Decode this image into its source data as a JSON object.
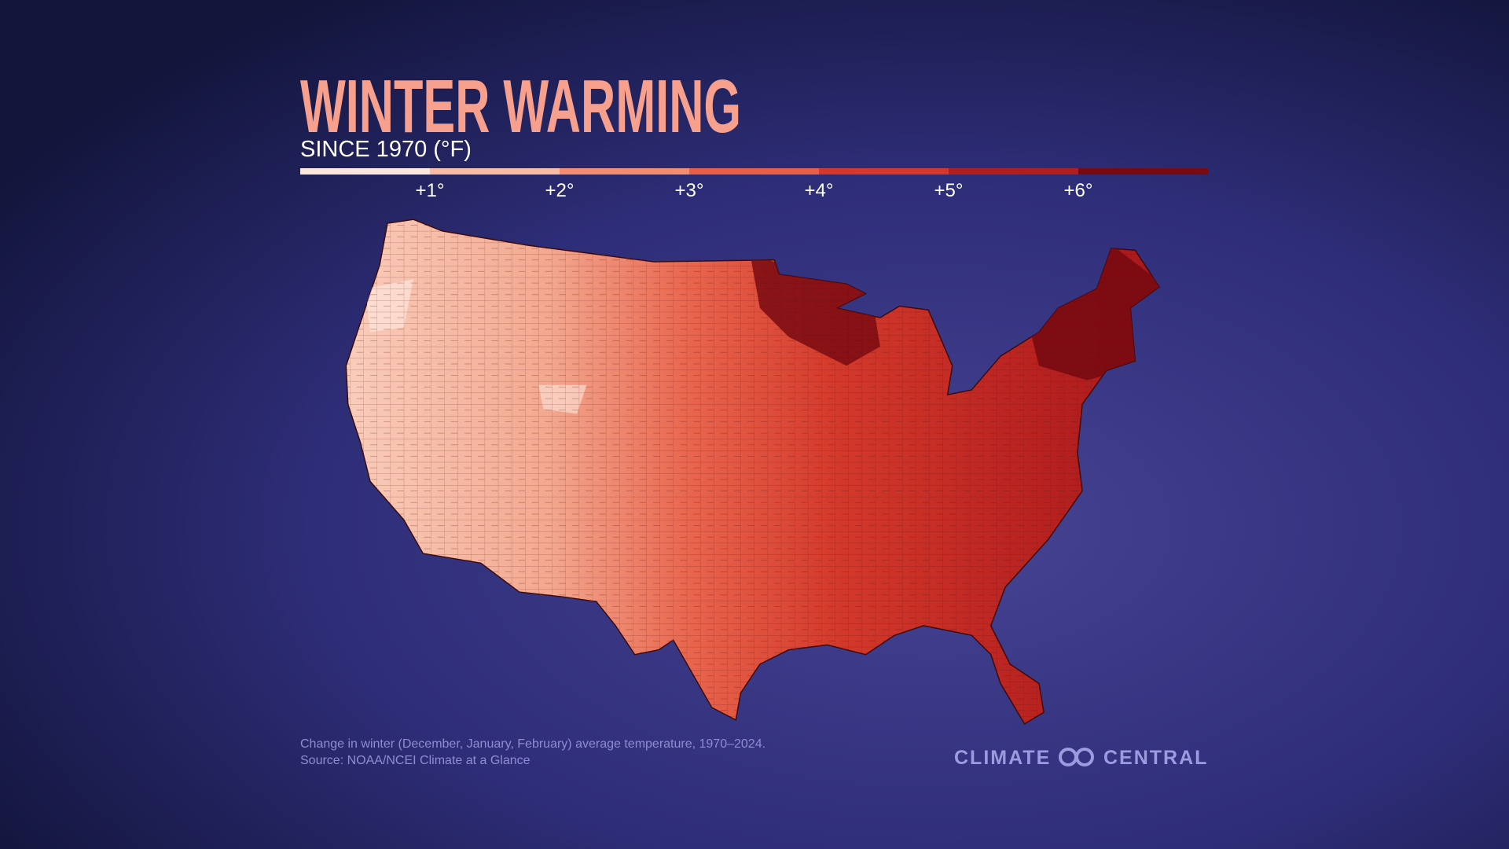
{
  "header": {
    "title": "WINTER WARMING",
    "subtitle": "SINCE 1970 (°F)"
  },
  "legend": {
    "labels": [
      "+1°",
      "+2°",
      "+3°",
      "+4°",
      "+5°",
      "+6°"
    ],
    "colors": [
      "#fde6dc",
      "#f8bba4",
      "#f28d70",
      "#e85e46",
      "#d5372b",
      "#b21d1d",
      "#7a0a12"
    ]
  },
  "footer": {
    "note": "Change in winter (December, January, February) average temperature, 1970–2024.",
    "source": "Source: NOAA/NCEI Climate at a Glance"
  },
  "logo": {
    "left": "CLIMATE",
    "right": "CENTRAL"
  }
}
